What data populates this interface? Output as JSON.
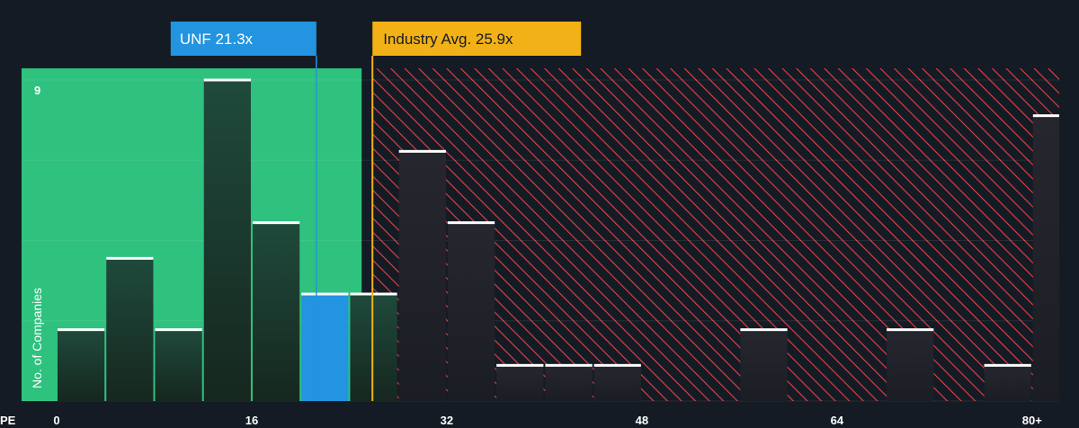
{
  "chart_data": {
    "type": "bar",
    "xlabel": "PE",
    "ylabel": "No. of Companies",
    "x_ticks": [
      {
        "value": 0,
        "label": "0"
      },
      {
        "value": 16,
        "label": "16"
      },
      {
        "value": 32,
        "label": "32"
      },
      {
        "value": 48,
        "label": "48"
      },
      {
        "value": 64,
        "label": "64"
      },
      {
        "value": 80,
        "label": "80+"
      }
    ],
    "y_tick": {
      "value": 9,
      "label": "9"
    },
    "xlim": [
      0,
      82
    ],
    "ylim": [
      0,
      9
    ],
    "bin_width": 4,
    "bins": [
      {
        "start": 0,
        "count": 2
      },
      {
        "start": 4,
        "count": 4
      },
      {
        "start": 8,
        "count": 2
      },
      {
        "start": 12,
        "count": 9
      },
      {
        "start": 16,
        "count": 5
      },
      {
        "start": 20,
        "count": 3,
        "highlight": true
      },
      {
        "start": 24,
        "count": 3
      },
      {
        "start": 28,
        "count": 7
      },
      {
        "start": 32,
        "count": 5
      },
      {
        "start": 36,
        "count": 1
      },
      {
        "start": 40,
        "count": 1
      },
      {
        "start": 44,
        "count": 1
      },
      {
        "start": 56,
        "count": 2
      },
      {
        "start": 68,
        "count": 2
      },
      {
        "start": 76,
        "count": 1
      },
      {
        "start": 80,
        "count": 8
      }
    ],
    "company": {
      "label": "UNF 21.3x",
      "value": 21.3,
      "color": "#2394df"
    },
    "industry": {
      "label": "Industry Avg. 25.9x",
      "value": 25.9,
      "color": "#f2b116"
    },
    "colors": {
      "fair_zone": "#2ec27e",
      "over_zone": "#e2434b",
      "bar": "#1f3a33",
      "bar_over": "#242730",
      "highlight_bar": "#2394df",
      "cap": "#ffffff",
      "background": "#151b24"
    }
  }
}
